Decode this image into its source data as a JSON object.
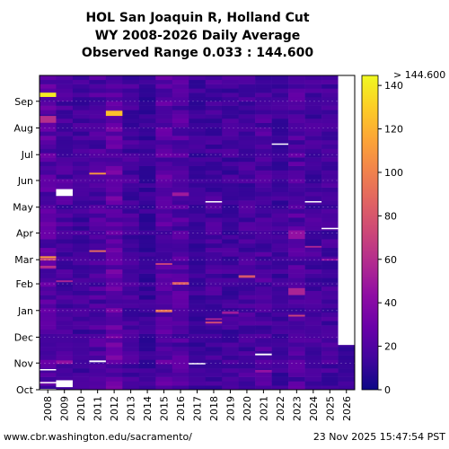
{
  "chart_data": {
    "type": "heatmap",
    "title_lines": [
      "HOL San Joaquin R, Holland Cut",
      "WY 2008-2026 Daily Average",
      "Observed Range 0.033 : 144.600"
    ],
    "x_categories": [
      "2008",
      "2009",
      "2010",
      "2011",
      "2012",
      "2013",
      "2014",
      "2015",
      "2016",
      "2017",
      "2018",
      "2019",
      "2020",
      "2021",
      "2022",
      "2023",
      "2024",
      "2025",
      "2026"
    ],
    "y_months": [
      "Oct",
      "Nov",
      "Dec",
      "Jan",
      "Feb",
      "Mar",
      "Apr",
      "May",
      "Jun",
      "Jul",
      "Aug",
      "Sep"
    ],
    "colorbar": {
      "ticks": [
        0,
        20,
        40,
        60,
        80,
        100,
        120,
        140
      ],
      "max_label": "> 144.600",
      "range": [
        0,
        144.6
      ],
      "colormap": "plasma"
    },
    "base_values": [
      22,
      18,
      15,
      18,
      26,
      16,
      12,
      22,
      20,
      13,
      16,
      15,
      16,
      18,
      14,
      20,
      16,
      16,
      12
    ],
    "features": [
      {
        "year": "2008",
        "day": 340,
        "len": 5,
        "value": 140
      },
      {
        "year": "2008",
        "day": 310,
        "len": 8,
        "value": 60
      },
      {
        "year": "2008",
        "day": 153,
        "len": 2,
        "value": 110
      },
      {
        "year": "2008",
        "day": 150,
        "len": 3,
        "value": 75
      },
      {
        "year": "2008",
        "day": 141,
        "len": 3,
        "value": 60
      },
      {
        "year": "2009",
        "day": 125,
        "len": 2,
        "value": 55
      },
      {
        "year": "2009",
        "day": 30,
        "len": 4,
        "value": 45
      },
      {
        "year": "2011",
        "day": 250,
        "len": 2,
        "value": 110
      },
      {
        "year": "2011",
        "day": 160,
        "len": 2,
        "value": 90
      },
      {
        "year": "2012",
        "day": 318,
        "len": 6,
        "value": 125
      },
      {
        "year": "2012",
        "day": 60,
        "len": 2,
        "value": 40
      },
      {
        "year": "2015",
        "day": 90,
        "len": 3,
        "value": 95
      },
      {
        "year": "2015",
        "day": 145,
        "len": 2,
        "value": 70
      },
      {
        "year": "2016",
        "day": 122,
        "len": 3,
        "value": 85
      },
      {
        "year": "2016",
        "day": 225,
        "len": 4,
        "value": 50
      },
      {
        "year": "2018",
        "day": 77,
        "len": 2,
        "value": 75
      },
      {
        "year": "2018",
        "day": 81,
        "len": 2,
        "value": 55
      },
      {
        "year": "2019",
        "day": 88,
        "len": 3,
        "value": 50
      },
      {
        "year": "2020",
        "day": 130,
        "len": 3,
        "value": 80
      },
      {
        "year": "2021",
        "day": 20,
        "len": 3,
        "value": 45
      },
      {
        "year": "2023",
        "day": 85,
        "len": 2,
        "value": 70
      },
      {
        "year": "2023",
        "day": 110,
        "len": 8,
        "value": 55
      },
      {
        "year": "2023",
        "day": 175,
        "len": 10,
        "value": 45
      },
      {
        "year": "2024",
        "day": 165,
        "len": 2,
        "value": 55
      },
      {
        "year": "2025",
        "day": 150,
        "len": 2,
        "value": 45
      }
    ],
    "missing": [
      {
        "year": "2008",
        "day": 0,
        "len": 1
      },
      {
        "year": "2008",
        "day": 8,
        "len": 1
      },
      {
        "year": "2008",
        "day": 23,
        "len": 1
      },
      {
        "year": "2009",
        "day": 3,
        "len": 8
      },
      {
        "year": "2009",
        "day": 225,
        "len": 8
      },
      {
        "year": "2011",
        "day": 32,
        "len": 2
      },
      {
        "year": "2017",
        "day": 30,
        "len": 1
      },
      {
        "year": "2018",
        "day": 218,
        "len": 1
      },
      {
        "year": "2021",
        "day": 40,
        "len": 2
      },
      {
        "year": "2022",
        "day": 285,
        "len": 1
      },
      {
        "year": "2024",
        "day": 218,
        "len": 1
      },
      {
        "year": "2025",
        "day": 187,
        "len": 1
      },
      {
        "year": "2026",
        "day": 52,
        "len": 313
      }
    ]
  },
  "footer": {
    "left": "www.cbr.washington.edu/sacramento/",
    "right": "23 Nov 2025 15:47:54 PST"
  }
}
